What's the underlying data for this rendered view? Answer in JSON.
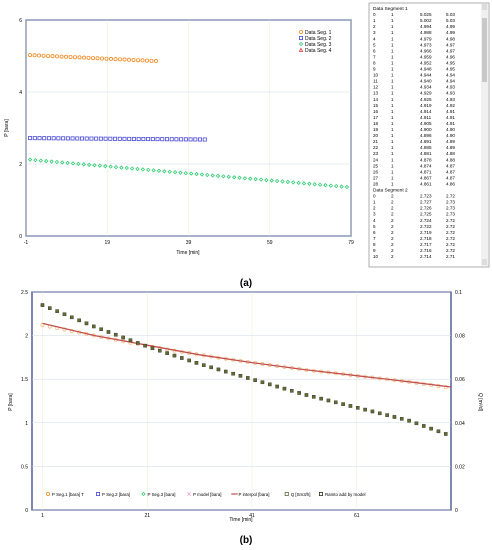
{
  "panel_a": {
    "label": "(a)",
    "chart_data": {
      "type": "scatter",
      "xlabel": "Time [min]",
      "ylabel": "P [bara]",
      "x_ticks": [
        -1,
        19,
        39,
        59,
        79
      ],
      "y_ticks": [
        0,
        2,
        4,
        6
      ],
      "xlim": [
        -1,
        79
      ],
      "ylim": [
        0,
        6
      ],
      "grid": true,
      "legend_position": "top-right",
      "series": [
        {
          "name": "Data Seg. 1",
          "color": "#f28c28",
          "marker": "circle",
          "x_start": 0,
          "x_end": 31,
          "y_start": 5.025,
          "y_end": 4.86,
          "count": 29
        },
        {
          "name": "Data Seg. 2",
          "color": "#4b4bd6",
          "marker": "square",
          "x_start": 0,
          "x_end": 43,
          "y_start": 2.72,
          "y_end": 2.68,
          "count": 38
        },
        {
          "name": "Data Seg. 3",
          "color": "#2ecc71",
          "marker": "diamond",
          "x_start": 0,
          "x_end": 78,
          "y_start": 2.12,
          "y_end": 1.36,
          "count": 60
        },
        {
          "name": "Data Seg. 4",
          "color": "#e03c3c",
          "marker": "triangle",
          "x_start": 0,
          "x_end": 0,
          "y_start": 0,
          "y_end": 0,
          "count": 0
        }
      ]
    },
    "table": {
      "segment1_header": "Data Segment 1",
      "segment2_header": "Data Segment 2",
      "segment1_rows": [
        [
          "0",
          "1",
          "5.025",
          "5.03"
        ],
        [
          "1",
          "1",
          "5.002",
          "5.03"
        ],
        [
          "2",
          "1",
          "4.994",
          "4.99"
        ],
        [
          "3",
          "1",
          "4.988",
          "4.99"
        ],
        [
          "4",
          "1",
          "4.979",
          "4.98"
        ],
        [
          "5",
          "1",
          "4.973",
          "4.97"
        ],
        [
          "6",
          "1",
          "4.966",
          "4.97"
        ],
        [
          "7",
          "1",
          "4.959",
          "4.96"
        ],
        [
          "8",
          "1",
          "4.952",
          "4.95"
        ],
        [
          "9",
          "1",
          "4.948",
          "4.95"
        ],
        [
          "10",
          "1",
          "4.944",
          "4.94"
        ],
        [
          "11",
          "1",
          "4.940",
          "4.94"
        ],
        [
          "12",
          "1",
          "4.934",
          "4.93"
        ],
        [
          "13",
          "1",
          "4.929",
          "4.93"
        ],
        [
          "14",
          "1",
          "4.925",
          "4.93"
        ],
        [
          "15",
          "1",
          "4.919",
          "4.92"
        ],
        [
          "16",
          "1",
          "4.914",
          "4.91"
        ],
        [
          "17",
          "1",
          "4.911",
          "4.91"
        ],
        [
          "18",
          "1",
          "4.905",
          "4.91"
        ],
        [
          "19",
          "1",
          "4.900",
          "4.90"
        ],
        [
          "20",
          "1",
          "4.896",
          "4.90"
        ],
        [
          "21",
          "1",
          "4.891",
          "4.89"
        ],
        [
          "22",
          "1",
          "4.885",
          "4.89"
        ],
        [
          "23",
          "1",
          "4.881",
          "4.88"
        ],
        [
          "24",
          "1",
          "4.878",
          "4.88"
        ],
        [
          "25",
          "1",
          "4.874",
          "4.87"
        ],
        [
          "26",
          "1",
          "4.871",
          "4.87"
        ],
        [
          "27",
          "1",
          "4.867",
          "4.87"
        ],
        [
          "28",
          "1",
          "4.861",
          "4.86"
        ]
      ],
      "segment2_rows": [
        [
          "0",
          "2",
          "2.723",
          "2.72"
        ],
        [
          "1",
          "2",
          "2.727",
          "2.73"
        ],
        [
          "2",
          "2",
          "2.726",
          "2.73"
        ],
        [
          "3",
          "2",
          "2.725",
          "2.73"
        ],
        [
          "4",
          "2",
          "2.724",
          "2.72"
        ],
        [
          "5",
          "2",
          "2.722",
          "2.72"
        ],
        [
          "6",
          "2",
          "2.719",
          "2.72"
        ],
        [
          "7",
          "2",
          "2.718",
          "2.72"
        ],
        [
          "8",
          "2",
          "2.717",
          "2.72"
        ],
        [
          "9",
          "2",
          "2.716",
          "2.72"
        ],
        [
          "10",
          "2",
          "2.714",
          "2.71"
        ]
      ]
    }
  },
  "panel_b": {
    "label": "(b)",
    "chart_data": {
      "type": "line",
      "xlabel": "Time [min]",
      "ylabel": "P [bara]",
      "y2label": "Q [m³/d]",
      "x_ticks": [
        1,
        21,
        41,
        61
      ],
      "y_ticks": [
        0,
        0.5,
        1,
        1.5,
        2,
        2.5
      ],
      "y2_ticks": [
        0,
        0.02,
        0.04,
        0.06,
        0.08,
        0.1
      ],
      "xlim": [
        -1,
        79
      ],
      "ylim": [
        0,
        2.5
      ],
      "y2lim": [
        0,
        0.1
      ],
      "grid": true,
      "legend_position": "bottom",
      "legend": [
        {
          "label": "P Seg.1 [bara] T",
          "color": "#f28c28",
          "marker": "circle"
        },
        {
          "label": "P Seg.2 [bara]",
          "color": "#4b4bd6",
          "marker": "square"
        },
        {
          "label": "P Seg.3 [bara]",
          "color": "#2ecc71",
          "marker": "diamond"
        },
        {
          "label": "P model [bara]",
          "color": "#e8a0c8",
          "marker": "cross"
        },
        {
          "label": "P interpol [bara]",
          "color": "#c0504d",
          "marker": "line"
        },
        {
          "label": "Q [Sm3/h]",
          "color": "#5b6e3a",
          "marker": "square"
        },
        {
          "label": "Ramto add by model",
          "color": "#3a2a1a",
          "marker": "square"
        }
      ],
      "series": [
        {
          "name": "P Seg.1 [bara] T",
          "x": [
            1,
            11,
            21,
            31,
            41,
            51,
            61,
            71,
            79
          ],
          "y": [
            2.12,
            2.0,
            1.88,
            1.78,
            1.69,
            1.61,
            1.54,
            1.47,
            1.4
          ]
        },
        {
          "name": "P interpol [bara]",
          "x": [
            1,
            11,
            21,
            31,
            41,
            51,
            61,
            71,
            79
          ],
          "y": [
            2.14,
            2.0,
            1.89,
            1.78,
            1.69,
            1.61,
            1.54,
            1.47,
            1.41
          ]
        },
        {
          "name": "Q [Sm3/h]",
          "axis": "y2",
          "x": [
            1,
            11,
            21,
            31,
            41,
            51,
            61,
            71,
            79
          ],
          "y": [
            0.094,
            0.084,
            0.075,
            0.067,
            0.06,
            0.053,
            0.047,
            0.041,
            0.034
          ]
        }
      ]
    }
  }
}
